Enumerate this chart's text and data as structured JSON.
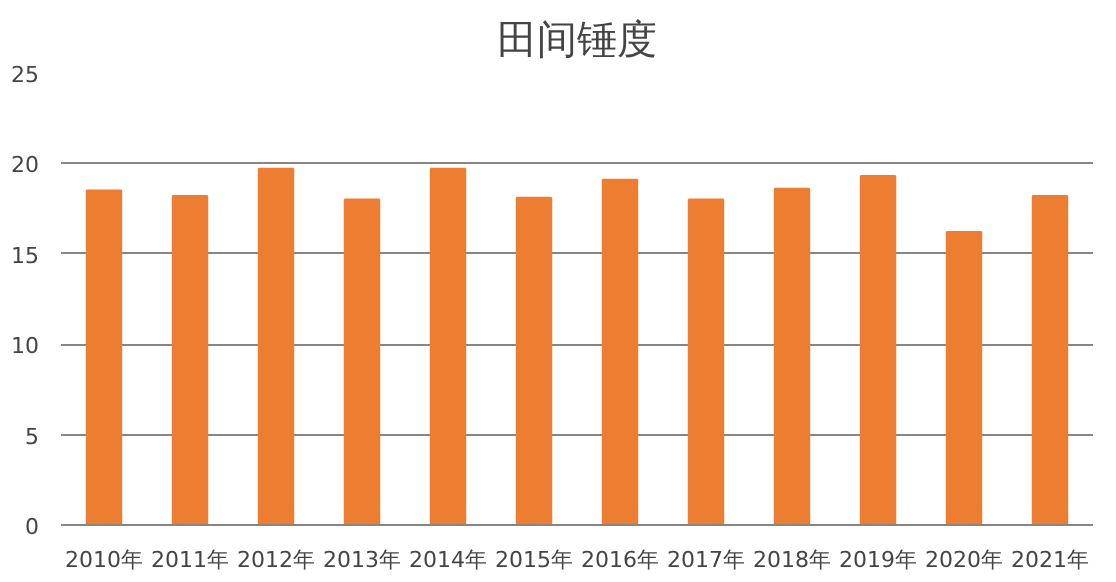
{
  "chart_data": {
    "type": "bar",
    "title": "田间锤度",
    "categories": [
      "2010年",
      "2011年",
      "2012年",
      "2013年",
      "2014年",
      "2015年",
      "2016年",
      "2017年",
      "2018年",
      "2019年",
      "2020年",
      "2021年"
    ],
    "values": [
      18.5,
      18.2,
      19.7,
      18.0,
      19.7,
      18.1,
      19.1,
      18.0,
      18.6,
      19.3,
      16.2,
      18.2
    ],
    "color": "#ed7d31",
    "ylim": [
      0,
      25
    ],
    "yticks": [
      0,
      5,
      10,
      15,
      20,
      25
    ],
    "grid": "y"
  }
}
